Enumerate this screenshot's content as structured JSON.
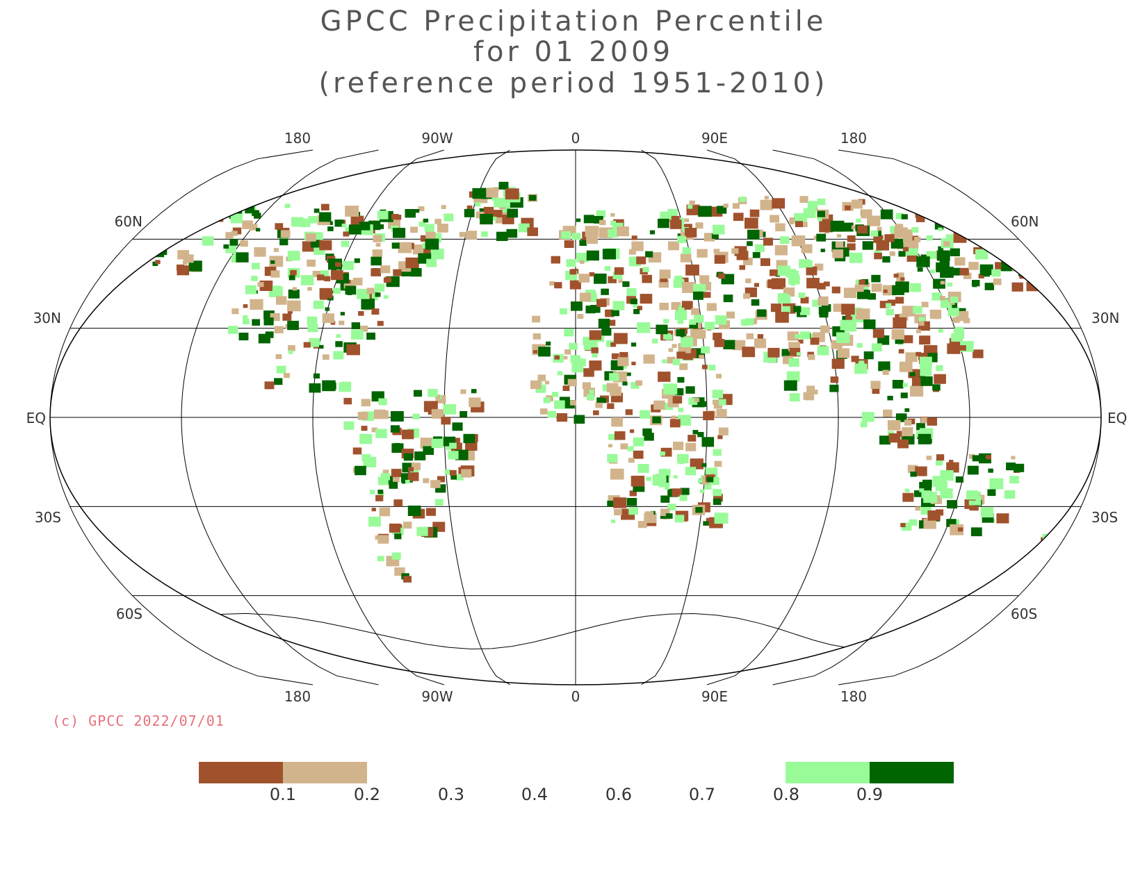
{
  "title": {
    "line1": "GPCC Precipitation Percentile",
    "line2": "for 01 2009",
    "line3": "(reference period 1951-2010)"
  },
  "map": {
    "lon_labels": [
      "180",
      "90W",
      "0",
      "90E",
      "180"
    ],
    "lat_labels": [
      "60N",
      "30N",
      "EQ",
      "30S",
      "60S"
    ]
  },
  "credit": {
    "text": "(c) GPCC 2022/07/01",
    "color": "#e8707a"
  },
  "legend": {
    "labels": [
      "0.1",
      "0.2",
      "0.3",
      "0.4",
      "0.6",
      "0.7",
      "0.8",
      "0.9"
    ],
    "colors": {
      "very_dry": "#a0522d",
      "dry": "#d2b48c",
      "wet": "#98fb98",
      "very_wet": "#006400"
    }
  }
}
